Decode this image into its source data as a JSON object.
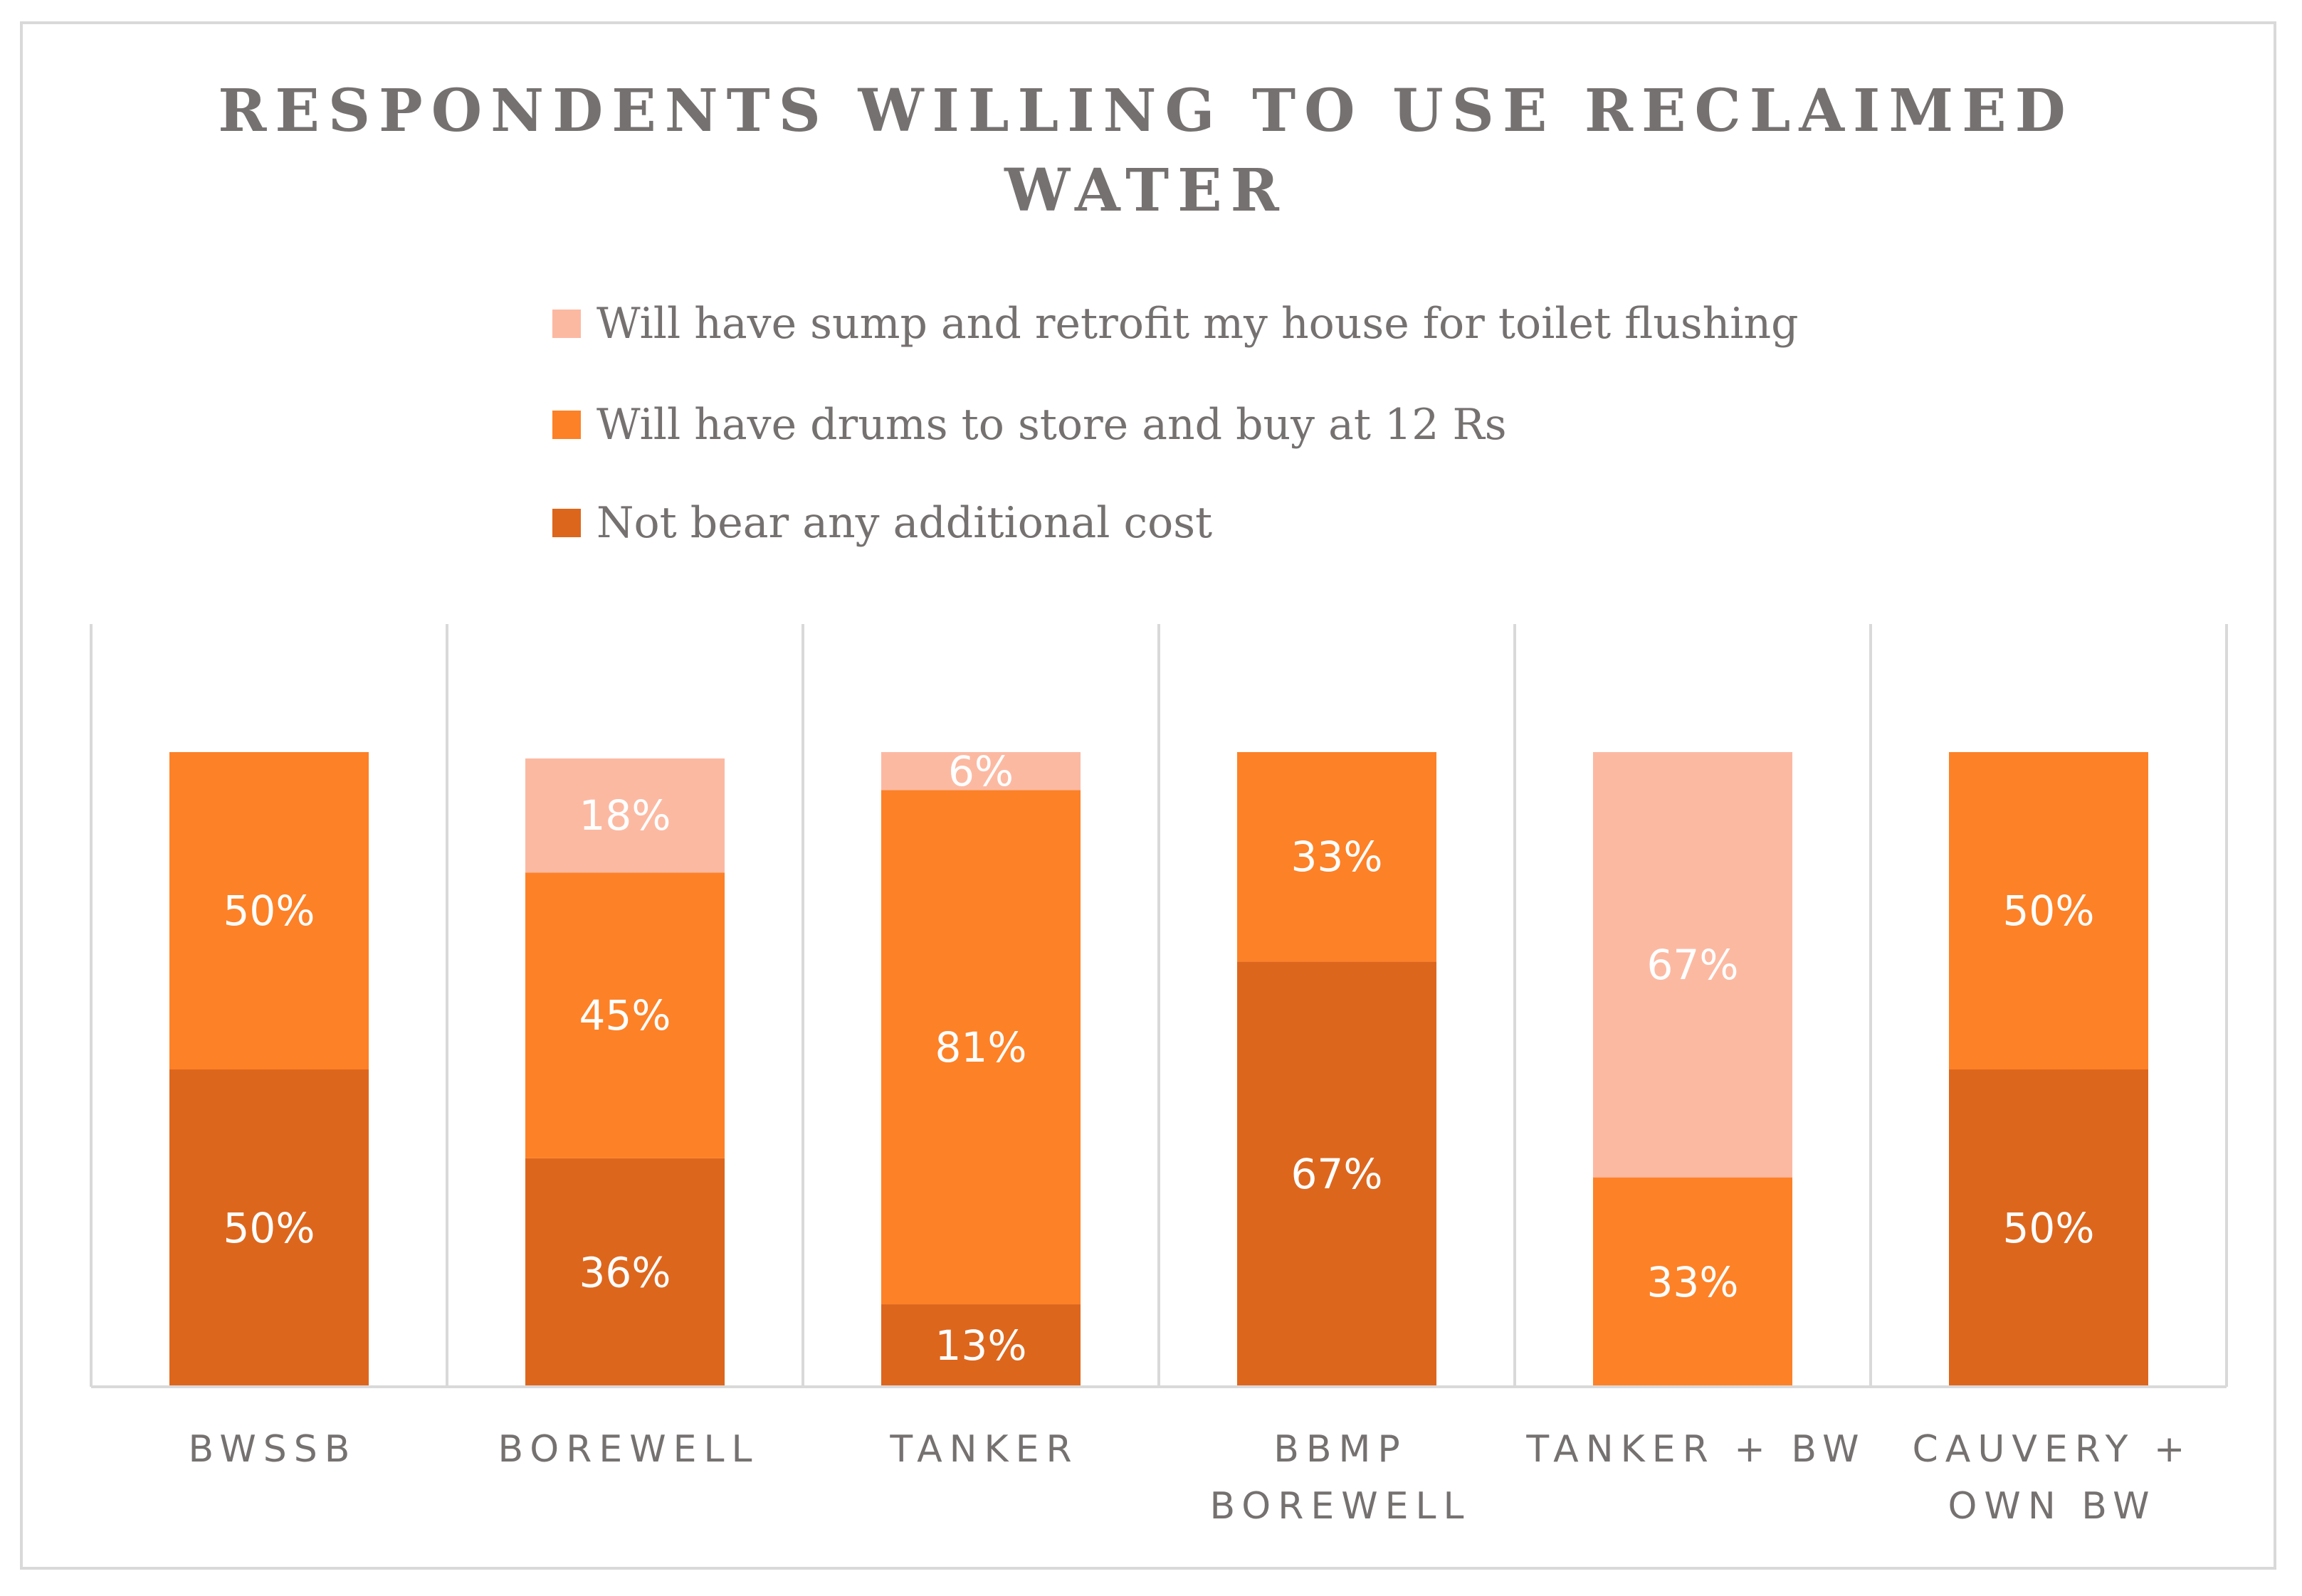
{
  "chart_data": {
    "type": "bar",
    "stacked": true,
    "title": "RESPONDENTS WILLING TO USE RECLAIMED WATER",
    "categories": [
      [
        "BWSSB"
      ],
      [
        "BOREWELL"
      ],
      [
        "TANKER"
      ],
      [
        "BBMP",
        "BOREWELL"
      ],
      [
        "TANKER + BW"
      ],
      [
        "CAUVERY +",
        "OWN BW"
      ]
    ],
    "series": [
      {
        "name": "Not bear any additional cost",
        "color": "#dd661d",
        "values": [
          50,
          36,
          13,
          67,
          0,
          50
        ],
        "labels": [
          "50%",
          "36%",
          "13%",
          "67%",
          "",
          "50%"
        ]
      },
      {
        "name": "Will have drums to store and buy at 12 Rs",
        "color": "#fd8127",
        "values": [
          50,
          45,
          81,
          33,
          33,
          50
        ],
        "labels": [
          "50%",
          "45%",
          "81%",
          "33%",
          "33%",
          "50%"
        ]
      },
      {
        "name": "Will have sump and retrofit my house for toilet flushing",
        "color": "#fcb9a2",
        "values": [
          0,
          18,
          6,
          0,
          67,
          0
        ],
        "labels": [
          "",
          "18%",
          "6%",
          "",
          "67%",
          ""
        ]
      }
    ],
    "legend_order": [
      2,
      1,
      0
    ],
    "ylim": [
      0,
      100
    ],
    "xlabel": "",
    "ylabel": "",
    "grid": false,
    "legend_position": "top"
  }
}
